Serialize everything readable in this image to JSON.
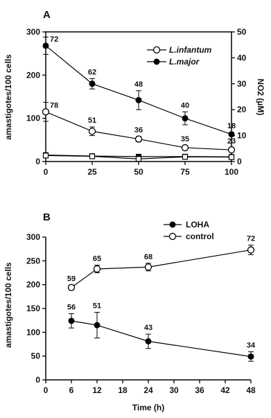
{
  "chart_data": [
    {
      "panel": "A",
      "type": "line",
      "xlabel": "",
      "ylabel": "amastigotes/100 cells",
      "ylabel_right": "NO2 (µM)",
      "x_ticks": [
        "0",
        "25",
        "50",
        "75",
        "100"
      ],
      "y_ticks": [
        "0",
        "100",
        "200",
        "300"
      ],
      "y2_ticks": [
        "0",
        "10",
        "20",
        "30",
        "40",
        "50"
      ],
      "xlim": [
        0,
        100
      ],
      "ylim": [
        0,
        300
      ],
      "y2lim": [
        0,
        50
      ],
      "legend_position": "top-right",
      "series": [
        {
          "name": "L.infantum",
          "marker": "open-circle",
          "x": [
            0,
            25,
            50,
            75,
            100
          ],
          "values": [
            115,
            70,
            52,
            32,
            27
          ],
          "errors": [
            22,
            10,
            6,
            5,
            5
          ],
          "labels": [
            "78",
            "51",
            "36",
            "35",
            "23"
          ]
        },
        {
          "name": "L.major",
          "marker": "filled-circle",
          "x": [
            0,
            25,
            50,
            75,
            100
          ],
          "values": [
            268,
            180,
            142,
            100,
            63
          ],
          "errors": [
            20,
            12,
            22,
            15,
            4
          ],
          "labels": [
            "72",
            "62",
            "48",
            "40",
            "18"
          ]
        },
        {
          "name": "",
          "marker": "filled-square",
          "axis": "right",
          "x": [
            0,
            25,
            50,
            75,
            100
          ],
          "values": [
            2.5,
            2.1,
            1.9,
            1.9,
            1.8
          ],
          "errors": [
            0.3,
            0.3,
            0.3,
            0.3,
            0.3
          ],
          "labels": []
        },
        {
          "name": "",
          "marker": "open-square",
          "axis": "right",
          "x": [
            0,
            25,
            50,
            75,
            100
          ],
          "values": [
            2.3,
            2.0,
            1.0,
            1.8,
            1.7
          ],
          "errors": [
            0.3,
            0.3,
            0.3,
            0.3,
            0.3
          ],
          "labels": []
        }
      ]
    },
    {
      "panel": "B",
      "type": "line",
      "xlabel": "Time (h)",
      "ylabel": "amastigotes/100 cells",
      "x_ticks": [
        "0",
        "6",
        "12",
        "18",
        "24",
        "30",
        "36",
        "42",
        "48"
      ],
      "y_ticks": [
        "0",
        "50",
        "100",
        "150",
        "200",
        "250",
        "300"
      ],
      "xlim": [
        0,
        48
      ],
      "ylim": [
        0,
        300
      ],
      "legend_position": "top-right",
      "series": [
        {
          "name": "LOHA",
          "marker": "filled-circle",
          "x": [
            6,
            12,
            24,
            48
          ],
          "values": [
            124,
            115,
            81,
            49
          ],
          "errors": [
            15,
            27,
            15,
            10
          ],
          "labels": [
            "56",
            "51",
            "43",
            "34"
          ]
        },
        {
          "name": "control",
          "marker": "open-circle",
          "x": [
            6,
            12,
            24,
            48
          ],
          "values": [
            194,
            233,
            237,
            273
          ],
          "errors": [
            5,
            8,
            8,
            10
          ],
          "labels": [
            "59",
            "65",
            "68",
            "72"
          ]
        }
      ]
    }
  ]
}
